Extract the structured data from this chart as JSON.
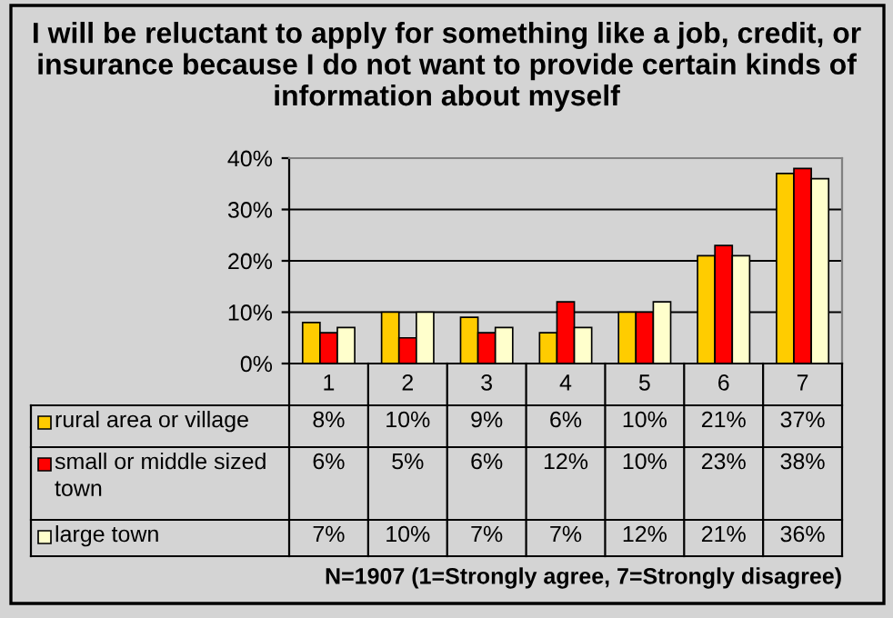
{
  "chart_data": {
    "type": "bar",
    "title": "I will be reluctant to apply for something like a job, credit, or insurance because I do not want to provide certain kinds of information about myself",
    "categories": [
      "1",
      "2",
      "3",
      "4",
      "5",
      "6",
      "7"
    ],
    "series": [
      {
        "name": "rural area or village",
        "color": "#ffcc00",
        "values": [
          8,
          10,
          9,
          6,
          10,
          21,
          37
        ],
        "value_labels": [
          "8%",
          "10%",
          "9%",
          "6%",
          "10%",
          "21%",
          "37%"
        ]
      },
      {
        "name": "small or middle sized town",
        "color": "#ff0000",
        "values": [
          6,
          5,
          6,
          12,
          10,
          23,
          38
        ],
        "value_labels": [
          "6%",
          "5%",
          "6%",
          "12%",
          "10%",
          "23%",
          "38%"
        ]
      },
      {
        "name": "large town",
        "color": "#ffffcc",
        "values": [
          7,
          10,
          7,
          7,
          12,
          21,
          36
        ],
        "value_labels": [
          "7%",
          "10%",
          "7%",
          "7%",
          "12%",
          "21%",
          "36%"
        ]
      }
    ],
    "ylim": [
      0,
      40
    ],
    "yticks": [
      {
        "value": 0,
        "label": "0%"
      },
      {
        "value": 10,
        "label": "10%"
      },
      {
        "value": 20,
        "label": "20%"
      },
      {
        "value": 30,
        "label": "30%"
      },
      {
        "value": 40,
        "label": "40%"
      }
    ],
    "grid": "y",
    "legend": "bottom left",
    "annotations": [
      "N=1907 (1=Strongly agree, 7=Strongly disagree)"
    ]
  }
}
